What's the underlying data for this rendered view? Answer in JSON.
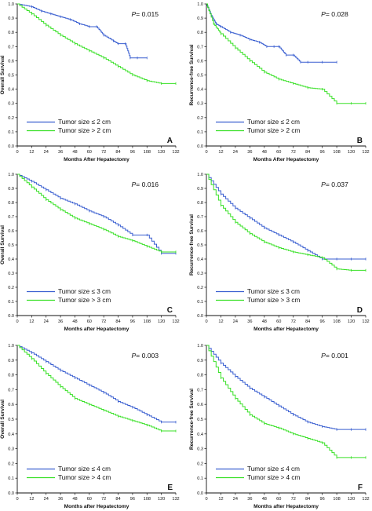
{
  "colors": {
    "blue": "#3a5fd0",
    "green": "#38e026",
    "axis": "#111111"
  },
  "chart_data": [
    {
      "type": "line",
      "panel": "A",
      "p_prefix": "P",
      "p_value": "= 0.015",
      "xlabel": "Months After Hepatectomy",
      "ylabel": "Overall Survival",
      "xlim": [
        0,
        132
      ],
      "ylim": [
        0,
        1.0
      ],
      "xticks": [
        "0",
        "12",
        "24",
        "36",
        "48",
        "60",
        "72",
        "84",
        "96",
        "108",
        "120",
        "132"
      ],
      "yticks": [
        "0.0",
        "0.1",
        "0.2",
        "0.3",
        "0.4",
        "0.5",
        "0.6",
        "0.7",
        "0.8",
        "0.9",
        "1.0"
      ],
      "legend_position": "bottom-left",
      "series": [
        {
          "name": "Tumor size ≤ 2 cm",
          "color": "blue",
          "x": [
            0,
            12,
            20,
            28,
            36,
            44,
            52,
            60,
            66,
            72,
            80,
            84,
            90,
            94,
            100,
            108
          ],
          "y": [
            1.0,
            0.98,
            0.95,
            0.93,
            0.91,
            0.89,
            0.86,
            0.84,
            0.84,
            0.78,
            0.74,
            0.72,
            0.72,
            0.62,
            0.62,
            0.62
          ]
        },
        {
          "name": "Tumor size > 2 cm",
          "color": "green",
          "x": [
            0,
            12,
            24,
            36,
            48,
            60,
            72,
            84,
            96,
            108,
            120,
            132
          ],
          "y": [
            1.0,
            0.93,
            0.85,
            0.78,
            0.72,
            0.67,
            0.62,
            0.56,
            0.5,
            0.46,
            0.44,
            0.44
          ]
        }
      ]
    },
    {
      "type": "line",
      "panel": "B",
      "p_prefix": "P",
      "p_value": "= 0.028",
      "xlabel": "Months After Hepatectomy",
      "ylabel": "Recurrence-free Survival",
      "xlim": [
        0,
        132
      ],
      "ylim": [
        0,
        1.0
      ],
      "xticks": [
        "0",
        "12",
        "24",
        "36",
        "48",
        "60",
        "72",
        "84",
        "96",
        "108",
        "120",
        "132"
      ],
      "yticks": [
        "0.0",
        "0.1",
        "0.2",
        "0.3",
        "0.4",
        "0.5",
        "0.6",
        "0.7",
        "0.8",
        "0.9",
        "1.0"
      ],
      "legend_position": "bottom-left",
      "series": [
        {
          "name": "Tumor size ≤ 2 cm",
          "color": "blue",
          "x": [
            0,
            4,
            8,
            12,
            20,
            28,
            36,
            44,
            50,
            56,
            60,
            66,
            72,
            78,
            84,
            96,
            108
          ],
          "y": [
            1.0,
            0.92,
            0.86,
            0.84,
            0.8,
            0.78,
            0.75,
            0.73,
            0.7,
            0.7,
            0.7,
            0.64,
            0.64,
            0.59,
            0.59,
            0.59,
            0.59
          ]
        },
        {
          "name": "Tumor size > 2 cm",
          "color": "green",
          "x": [
            0,
            6,
            12,
            24,
            36,
            48,
            60,
            72,
            84,
            96,
            108,
            120,
            132
          ],
          "y": [
            1.0,
            0.86,
            0.79,
            0.69,
            0.6,
            0.52,
            0.47,
            0.44,
            0.41,
            0.4,
            0.3,
            0.3,
            0.3
          ]
        }
      ]
    },
    {
      "type": "line",
      "panel": "C",
      "p_prefix": "P",
      "p_value": "= 0.016",
      "xlabel": "Months after Hepatectomy",
      "ylabel": "Overall Survival",
      "xlim": [
        0,
        132
      ],
      "ylim": [
        0,
        1.0
      ],
      "xticks": [
        "0",
        "12",
        "24",
        "36",
        "48",
        "60",
        "72",
        "84",
        "96",
        "108",
        "120",
        "132"
      ],
      "yticks": [
        "0.0",
        "0.1",
        "0.2",
        "0.3",
        "0.4",
        "0.5",
        "0.6",
        "0.7",
        "0.8",
        "0.9",
        "1.0"
      ],
      "legend_position": "bottom-left",
      "series": [
        {
          "name": "Tumor size ≤ 3 cm",
          "color": "blue",
          "x": [
            0,
            12,
            24,
            36,
            48,
            60,
            72,
            84,
            96,
            108,
            120,
            132
          ],
          "y": [
            1.0,
            0.95,
            0.89,
            0.83,
            0.79,
            0.74,
            0.7,
            0.64,
            0.57,
            0.57,
            0.44,
            0.44
          ]
        },
        {
          "name": "Tumor size > 3 cm",
          "color": "green",
          "x": [
            0,
            12,
            24,
            36,
            48,
            60,
            72,
            84,
            96,
            108,
            120,
            132
          ],
          "y": [
            1.0,
            0.91,
            0.82,
            0.75,
            0.69,
            0.65,
            0.61,
            0.56,
            0.53,
            0.49,
            0.45,
            0.45
          ]
        }
      ]
    },
    {
      "type": "line",
      "panel": "D",
      "p_prefix": "P",
      "p_value": "= 0.037",
      "xlabel": "Months after Hepatectomy",
      "ylabel": "Recurrence-free Survival",
      "xlim": [
        0,
        132
      ],
      "ylim": [
        0,
        1.0
      ],
      "xticks": [
        "0",
        "12",
        "24",
        "36",
        "48",
        "60",
        "72",
        "84",
        "96",
        "108",
        "120",
        "132"
      ],
      "yticks": [
        "0.0",
        "0.1",
        "0.2",
        "0.3",
        "0.4",
        "0.5",
        "0.6",
        "0.7",
        "0.8",
        "0.9",
        "1.0"
      ],
      "legend_position": "bottom-left",
      "series": [
        {
          "name": "Tumor size ≤ 3 cm",
          "color": "blue",
          "x": [
            0,
            12,
            24,
            36,
            48,
            60,
            72,
            84,
            96,
            108,
            120,
            132
          ],
          "y": [
            1.0,
            0.86,
            0.76,
            0.69,
            0.62,
            0.57,
            0.52,
            0.46,
            0.4,
            0.4,
            0.4,
            0.4
          ]
        },
        {
          "name": "Tumor size > 3 cm",
          "color": "green",
          "x": [
            0,
            12,
            24,
            36,
            48,
            60,
            72,
            84,
            96,
            108,
            120,
            132
          ],
          "y": [
            1.0,
            0.78,
            0.66,
            0.58,
            0.52,
            0.48,
            0.45,
            0.43,
            0.41,
            0.33,
            0.32,
            0.32
          ]
        }
      ]
    },
    {
      "type": "line",
      "panel": "E",
      "p_prefix": "P",
      "p_value": "= 0.003",
      "xlabel": "Months after Hepatectomy",
      "ylabel": "Overall Survival",
      "xlim": [
        0,
        132
      ],
      "ylim": [
        0,
        1.0
      ],
      "xticks": [
        "0",
        "12",
        "24",
        "36",
        "48",
        "60",
        "72",
        "84",
        "96",
        "108",
        "120",
        "132"
      ],
      "yticks": [
        "0.0",
        "0.1",
        "0.2",
        "0.3",
        "0.4",
        "0.5",
        "0.6",
        "0.7",
        "0.8",
        "0.9",
        "1.0"
      ],
      "legend_position": "bottom-left",
      "series": [
        {
          "name": "Tumor size ≤ 4 cm",
          "color": "blue",
          "x": [
            0,
            12,
            24,
            36,
            48,
            60,
            72,
            84,
            96,
            108,
            120,
            132
          ],
          "y": [
            1.0,
            0.95,
            0.89,
            0.83,
            0.78,
            0.73,
            0.68,
            0.62,
            0.58,
            0.53,
            0.48,
            0.48
          ]
        },
        {
          "name": "Tumor size > 4 cm",
          "color": "green",
          "x": [
            0,
            12,
            24,
            36,
            48,
            60,
            72,
            84,
            96,
            108,
            120,
            132
          ],
          "y": [
            1.0,
            0.91,
            0.81,
            0.72,
            0.64,
            0.6,
            0.56,
            0.52,
            0.49,
            0.46,
            0.42,
            0.42
          ]
        }
      ]
    },
    {
      "type": "line",
      "panel": "F",
      "p_prefix": "P",
      "p_value": "= 0.001",
      "xlabel": "Months after Hepatectomy",
      "ylabel": "Recurrence-free Survival",
      "xlim": [
        0,
        132
      ],
      "ylim": [
        0,
        1.0
      ],
      "xticks": [
        "0",
        "12",
        "24",
        "36",
        "48",
        "60",
        "72",
        "84",
        "96",
        "108",
        "120",
        "132"
      ],
      "yticks": [
        "0.0",
        "0.1",
        "0.2",
        "0.3",
        "0.4",
        "0.5",
        "0.6",
        "0.7",
        "0.8",
        "0.9",
        "1.0"
      ],
      "legend_position": "bottom-left",
      "series": [
        {
          "name": "Tumor size ≤ 4 cm",
          "color": "blue",
          "x": [
            0,
            12,
            24,
            36,
            48,
            60,
            72,
            84,
            96,
            108,
            120,
            132
          ],
          "y": [
            1.0,
            0.88,
            0.79,
            0.71,
            0.65,
            0.59,
            0.53,
            0.48,
            0.45,
            0.43,
            0.43,
            0.43
          ]
        },
        {
          "name": "Tumor size > 4 cm",
          "color": "green",
          "x": [
            0,
            12,
            24,
            36,
            48,
            60,
            72,
            84,
            96,
            108,
            120,
            132
          ],
          "y": [
            1.0,
            0.78,
            0.64,
            0.53,
            0.47,
            0.44,
            0.4,
            0.37,
            0.34,
            0.24,
            0.24,
            0.24
          ]
        }
      ]
    }
  ]
}
